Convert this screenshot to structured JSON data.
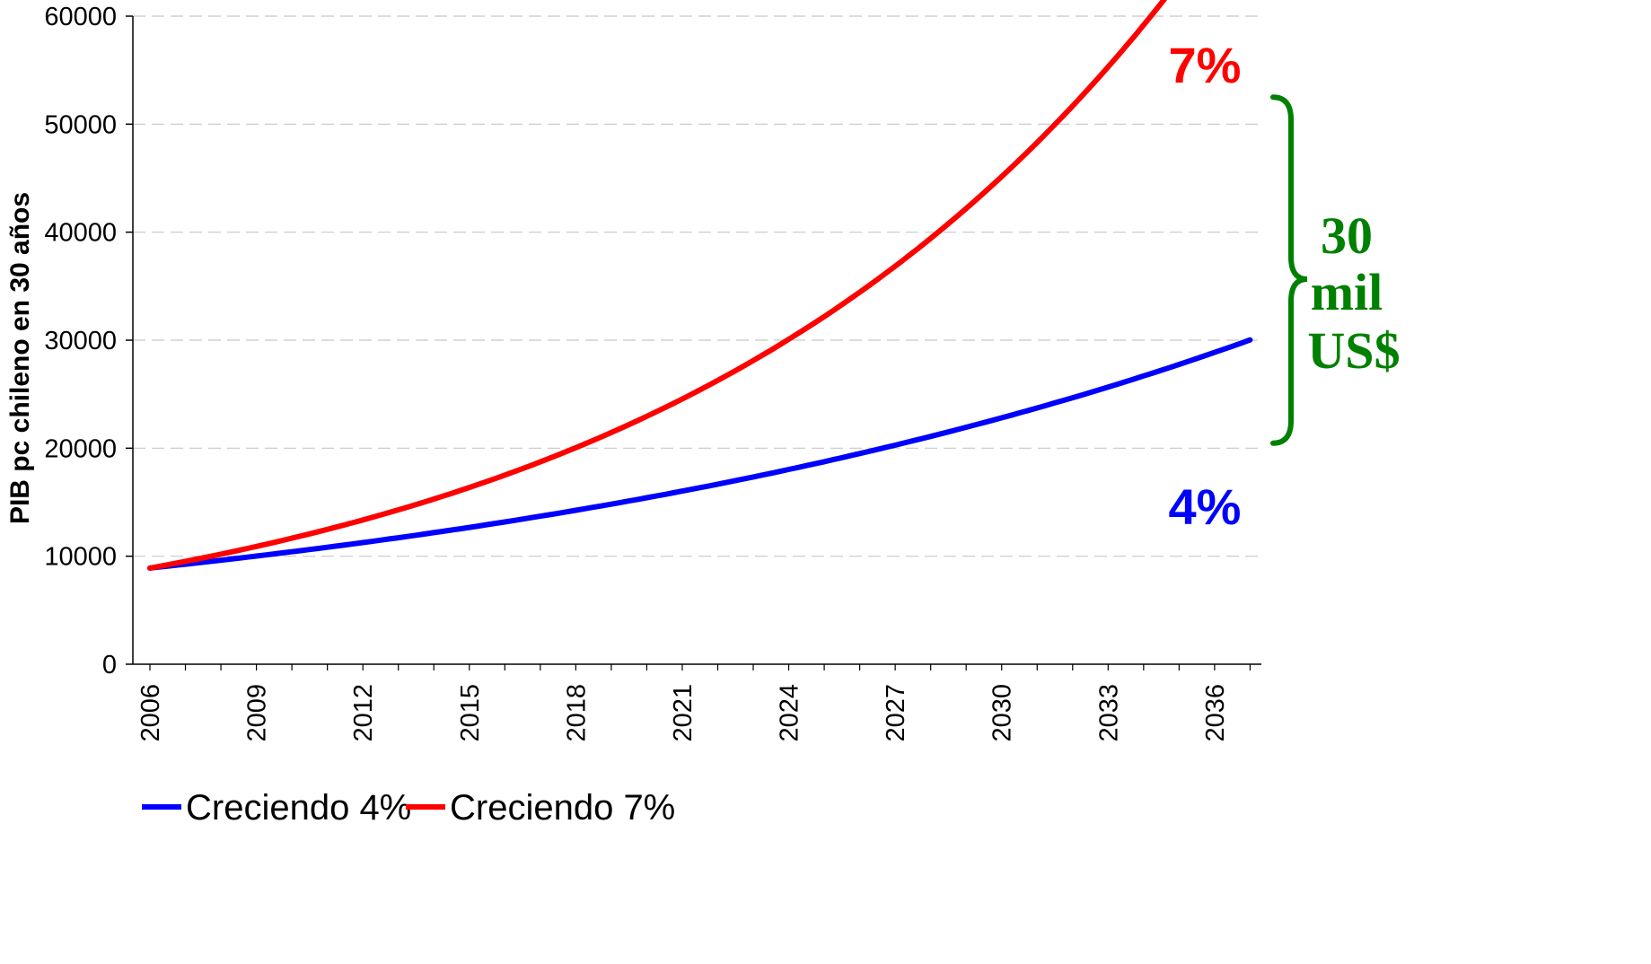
{
  "chart_data": {
    "type": "line",
    "title": "",
    "xlabel": "",
    "ylabel": "PIB pc chileno en 30 años",
    "ylim": [
      0,
      60000
    ],
    "yticks": [
      0,
      10000,
      20000,
      30000,
      40000,
      50000,
      60000
    ],
    "xlim": [
      2006,
      2037
    ],
    "xticks": [
      2006,
      2009,
      2012,
      2015,
      2018,
      2021,
      2024,
      2027,
      2030,
      2033,
      2036
    ],
    "grid": true,
    "legend_position": "bottom-left",
    "series": [
      {
        "name": "Creciendo 4%",
        "color": "#0000ff",
        "start_year": 2006,
        "end_year": 2037,
        "start_value": 8900,
        "growth_rate": 0.04
      },
      {
        "name": "Creciendo 7%",
        "color": "#ff0000",
        "start_year": 2006,
        "end_year": 2037,
        "start_value": 8900,
        "growth_rate": 0.07
      }
    ],
    "annotations": {
      "label_7": {
        "text": "7%",
        "color": "#ff0000"
      },
      "label_4": {
        "text": "4%",
        "color": "#0000ff"
      },
      "brace": {
        "lines": [
          "30",
          "mil",
          "US$"
        ],
        "color": "#008000",
        "from_value": 20800,
        "to_value": 51000
      }
    }
  }
}
